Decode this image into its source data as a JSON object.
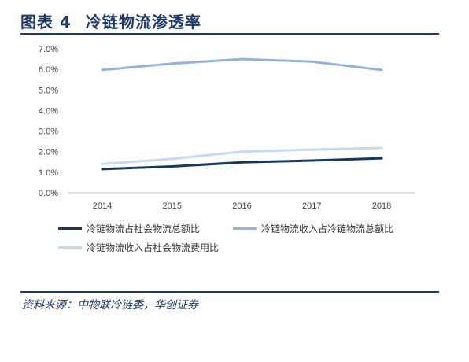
{
  "figure": {
    "label": "图表 4",
    "title": "冷链物流渗透率"
  },
  "source": "资料来源：中物联冷链委，华创证券",
  "colors": {
    "header": "#1f3864",
    "axis": "#bfbfbf"
  },
  "chart_data": {
    "type": "line",
    "title": "",
    "xlabel": "",
    "ylabel": "",
    "categories": [
      "2014",
      "2015",
      "2016",
      "2017",
      "2018"
    ],
    "ylim": [
      0,
      0.07
    ],
    "yticks": [
      "0.0%",
      "1.0%",
      "2.0%",
      "3.0%",
      "4.0%",
      "5.0%",
      "6.0%",
      "7.0%"
    ],
    "grid": false,
    "legend_position": "bottom",
    "series": [
      {
        "name": "冷链物流占社会物流总额比",
        "color": "#17375e",
        "values": [
          0.0115,
          0.0128,
          0.0148,
          0.0157,
          0.0168
        ]
      },
      {
        "name": "冷链物流收入占冷链物流总额比",
        "color": "#95b3d7",
        "values": [
          0.0597,
          0.0628,
          0.065,
          0.0638,
          0.0597
        ]
      },
      {
        "name": "冷链物流收入占社会物流费用比",
        "color": "#c6d9f1",
        "values": [
          0.014,
          0.0165,
          0.02,
          0.021,
          0.0218
        ]
      }
    ]
  }
}
